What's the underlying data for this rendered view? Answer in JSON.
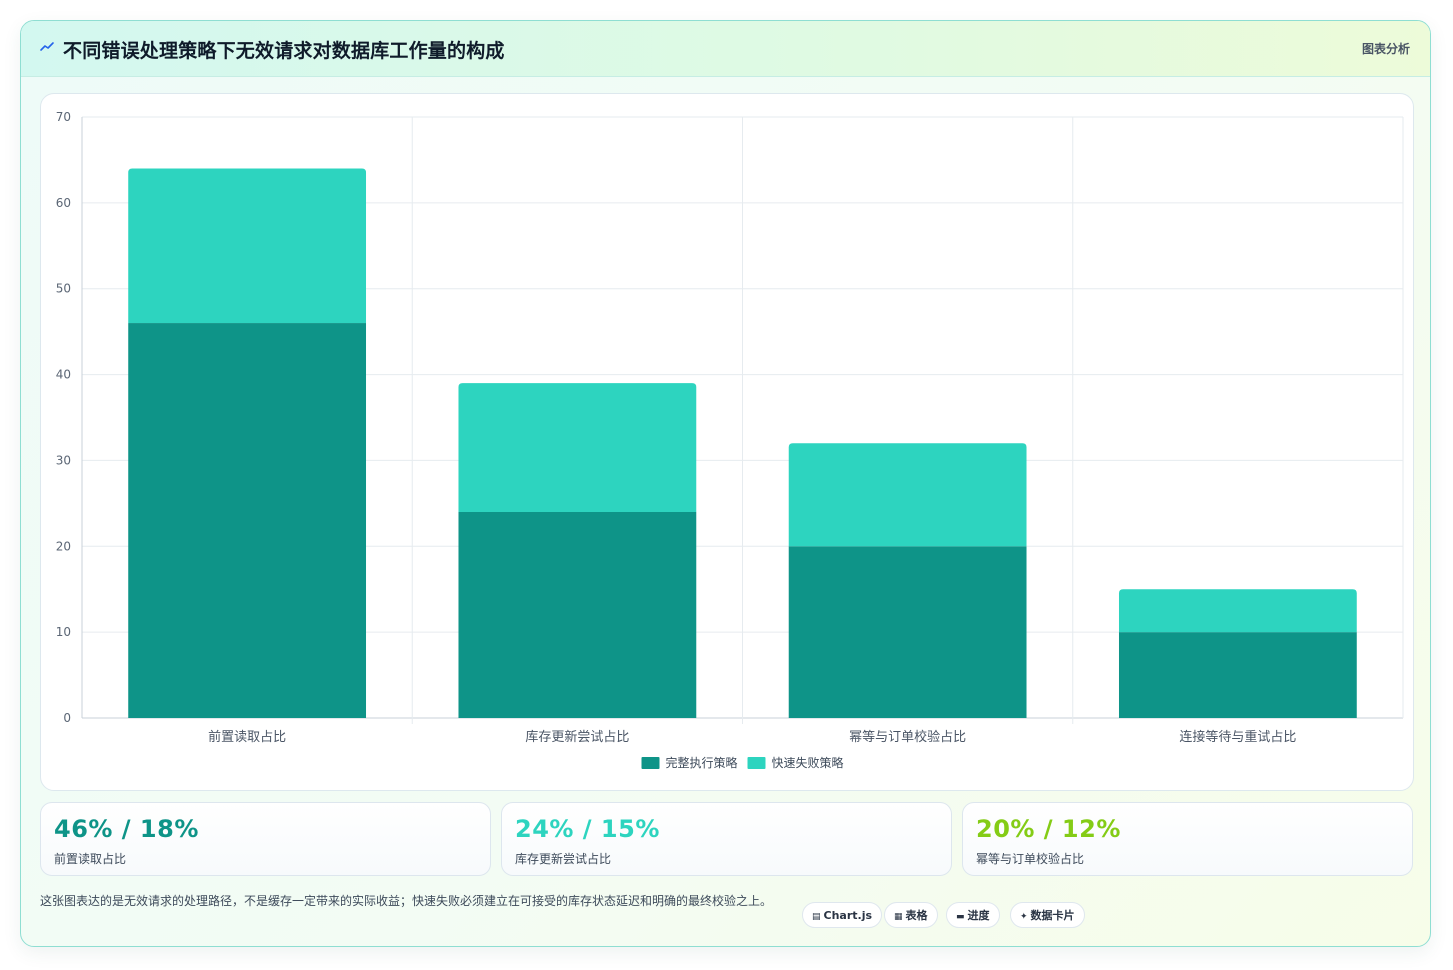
{
  "header": {
    "title": "不同错误处理策略下无效请求对数据库工作量的构成",
    "tag": "图表分析"
  },
  "chart_data": {
    "type": "bar",
    "stacked": true,
    "categories": [
      "前置读取占比",
      "库存更新尝试占比",
      "幂等与订单校验占比",
      "连接等待与重试占比"
    ],
    "series": [
      {
        "name": "完整执行策略",
        "values": [
          46,
          24,
          20,
          10
        ],
        "color": "#0e9488"
      },
      {
        "name": "快速失败策略",
        "values": [
          18,
          15,
          12,
          5
        ],
        "color": "#2dd4bf"
      }
    ],
    "ylim": [
      0,
      70
    ],
    "yticks": [
      0,
      10,
      20,
      30,
      40,
      50,
      60,
      70
    ],
    "grid": true,
    "legend_position": "bottom"
  },
  "stats": [
    {
      "value": "46% / 18%",
      "label": "前置读取占比",
      "color": "#0e9488"
    },
    {
      "value": "24% / 15%",
      "label": "库存更新尝试占比",
      "color": "#2dd4bf"
    },
    {
      "value": "20% / 12%",
      "label": "幂等与订单校验占比",
      "color": "#84cc16"
    }
  ],
  "footer": {
    "note": "这张图表达的是无效请求的处理路径，不是缓存一定带来的实际收益；快速失败必须建立在可接受的库存状态延迟和明确的最终校验之上。"
  },
  "chips": [
    {
      "icon": "chart-icon",
      "label": "Chart.js"
    },
    {
      "icon": "table-icon",
      "label": "表格"
    },
    {
      "icon": "progress-icon",
      "label": "进度"
    },
    {
      "icon": "sparkle-icon",
      "label": "数据卡片"
    }
  ]
}
